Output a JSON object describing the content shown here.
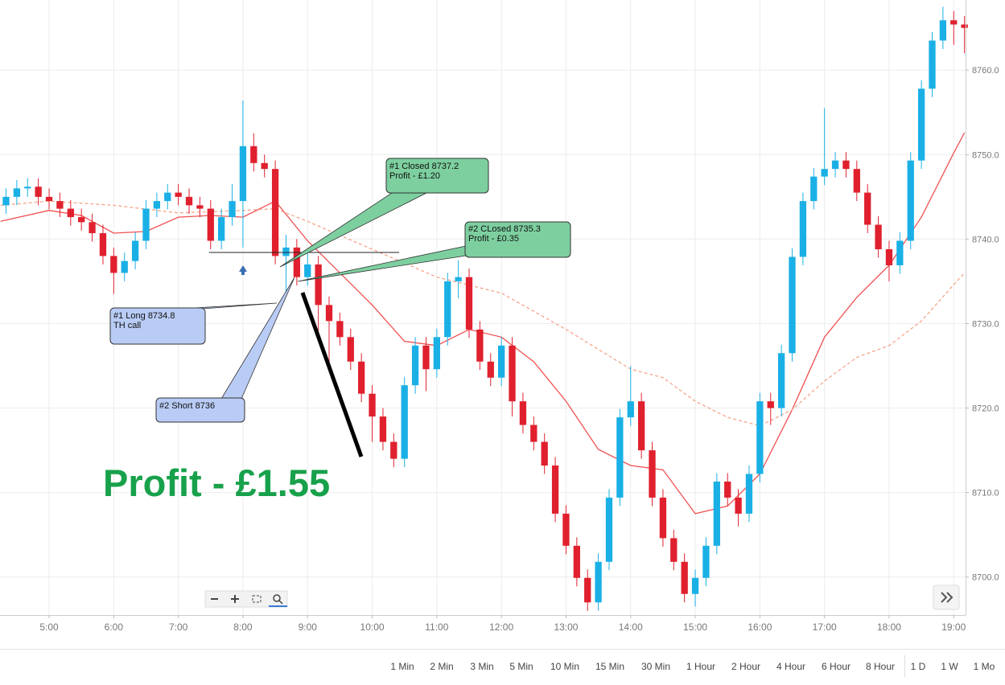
{
  "chart_data": {
    "type": "candlestick",
    "up_color": "#1ab0e6",
    "down_color": "#e0202e",
    "grid": true,
    "xlim": [
      254.4,
      1151
    ],
    "xticks": [
      {
        "value": 300,
        "label": "5:00"
      },
      {
        "value": 360,
        "label": "6:00"
      },
      {
        "value": 420,
        "label": "7:00"
      },
      {
        "value": 480,
        "label": "8:00"
      },
      {
        "value": 540,
        "label": "9:00"
      },
      {
        "value": 600,
        "label": "10:00"
      },
      {
        "value": 660,
        "label": "11:00"
      },
      {
        "value": 720,
        "label": "12:00"
      },
      {
        "value": 780,
        "label": "13:00"
      },
      {
        "value": 840,
        "label": "14:00"
      },
      {
        "value": 900,
        "label": "15:00"
      },
      {
        "value": 960,
        "label": "16:00"
      },
      {
        "value": 1020,
        "label": "17:00"
      },
      {
        "value": 1080,
        "label": "18:00"
      },
      {
        "value": 1140,
        "label": "19:00"
      }
    ],
    "ylim": [
      8695.5,
      8768.3
    ],
    "yticks": [
      {
        "value": 8700,
        "label": "8700.0"
      },
      {
        "value": 8710,
        "label": "8710.0"
      },
      {
        "value": 8720,
        "label": "8720.0"
      },
      {
        "value": 8730,
        "label": "8730.0"
      },
      {
        "value": 8740,
        "label": "8740.0"
      },
      {
        "value": 8750,
        "label": "8750.0"
      },
      {
        "value": 8760,
        "label": "8760.0"
      }
    ],
    "x": [
      260,
      270,
      280,
      290,
      300,
      310,
      320,
      330,
      340,
      350,
      360,
      370,
      380,
      390,
      400,
      410,
      420,
      430,
      440,
      450,
      460,
      470,
      480,
      490,
      500,
      510,
      520,
      530,
      540,
      550,
      560,
      570,
      580,
      590,
      600,
      610,
      620,
      630,
      640,
      650,
      660,
      670,
      680,
      690,
      700,
      710,
      720,
      730,
      740,
      750,
      760,
      770,
      780,
      790,
      800,
      810,
      820,
      830,
      840,
      850,
      860,
      870,
      880,
      890,
      900,
      910,
      920,
      930,
      940,
      950,
      960,
      970,
      980,
      990,
      1000,
      1010,
      1020,
      1030,
      1040,
      1050,
      1060,
      1070,
      1080,
      1090,
      1100,
      1110,
      1120,
      1130,
      1140,
      1150
    ],
    "open": [
      8744.0,
      8745.0,
      8746.0,
      8746.2,
      8745.0,
      8744.5,
      8743.6,
      8742.6,
      8742.0,
      8740.7,
      8738.0,
      8736.0,
      8737.4,
      8739.8,
      8743.6,
      8744.5,
      8745.5,
      8745.0,
      8744.0,
      8743.6,
      8739.8,
      8742.6,
      8744.5,
      8751.0,
      8749.0,
      8748.3,
      8738.0,
      8739.0,
      8735.5,
      8737.0,
      8732.2,
      8730.3,
      8728.4,
      8725.5,
      8721.7,
      8719.0,
      8716.0,
      8714.0,
      8722.7,
      8727.4,
      8724.6,
      8728.4,
      8735.0,
      8735.5,
      8729.3,
      8725.5,
      8723.6,
      8727.4,
      8720.8,
      8718.0,
      8716.0,
      8713.2,
      8707.5,
      8703.7,
      8699.9,
      8697.0,
      8701.8,
      8709.4,
      8718.9,
      8720.8,
      8715.0,
      8709.4,
      8704.6,
      8701.8,
      8698.0,
      8699.9,
      8703.7,
      8711.3,
      8709.4,
      8707.5,
      8712.2,
      8720.8,
      8720.0,
      8726.5,
      8737.9,
      8744.5,
      8747.4,
      8748.3,
      8749.3,
      8748.3,
      8745.5,
      8741.7,
      8738.8,
      8736.9,
      8739.8,
      8749.3,
      8757.8,
      8763.5,
      8765.9,
      8765.4
    ],
    "high": [
      8746.0,
      8747.0,
      8747.2,
      8747.2,
      8746.0,
      8745.5,
      8744.6,
      8743.6,
      8743.0,
      8741.7,
      8739.0,
      8738.4,
      8740.8,
      8744.6,
      8745.5,
      8746.5,
      8746.5,
      8746.0,
      8745.0,
      8744.6,
      8743.6,
      8746.5,
      8756.4,
      8752.5,
      8750.0,
      8749.3,
      8740.5,
      8740.0,
      8738.5,
      8738.0,
      8733.2,
      8731.3,
      8729.4,
      8726.5,
      8722.7,
      8720.0,
      8717.0,
      8723.7,
      8728.4,
      8728.4,
      8729.4,
      8736.0,
      8737.5,
      8736.5,
      8730.3,
      8726.5,
      8728.4,
      8728.4,
      8721.8,
      8719.0,
      8717.0,
      8714.2,
      8708.5,
      8704.7,
      8700.9,
      8702.8,
      8710.4,
      8719.9,
      8725.0,
      8721.8,
      8716.0,
      8710.4,
      8705.6,
      8702.8,
      8700.9,
      8704.7,
      8712.3,
      8712.3,
      8710.4,
      8713.2,
      8721.8,
      8721.8,
      8727.5,
      8738.9,
      8745.5,
      8748.4,
      8755.5,
      8750.3,
      8750.3,
      8749.3,
      8746.5,
      8742.7,
      8739.8,
      8740.8,
      8750.3,
      8758.8,
      8764.5,
      8767.5,
      8767.0,
      8766.4
    ],
    "low": [
      8743.0,
      8744.0,
      8745.0,
      8744.0,
      8743.5,
      8742.6,
      8741.6,
      8741.0,
      8739.7,
      8737.0,
      8733.5,
      8735.0,
      8736.4,
      8738.8,
      8742.6,
      8743.5,
      8744.0,
      8743.0,
      8742.6,
      8738.8,
      8738.8,
      8741.6,
      8739.0,
      8748.0,
      8747.3,
      8737.0,
      8733.5,
      8734.5,
      8734.5,
      8728.5,
      8724.5,
      8727.4,
      8724.5,
      8720.7,
      8716.0,
      8715.0,
      8713.0,
      8713.0,
      8721.7,
      8722.0,
      8723.6,
      8727.4,
      8733.0,
      8728.3,
      8724.5,
      8722.6,
      8722.6,
      8719.0,
      8717.0,
      8715.0,
      8712.2,
      8706.5,
      8702.7,
      8698.9,
      8696.0,
      8696.0,
      8700.8,
      8708.4,
      8717.9,
      8714.0,
      8708.4,
      8703.6,
      8700.8,
      8697.0,
      8696.5,
      8698.9,
      8702.7,
      8708.4,
      8706.0,
      8706.5,
      8711.2,
      8718.0,
      8719.0,
      8725.5,
      8736.9,
      8743.5,
      8746.4,
      8747.3,
      8747.3,
      8744.5,
      8740.7,
      8737.8,
      8735.0,
      8735.9,
      8738.8,
      8748.3,
      8756.8,
      8762.5,
      8763.0,
      8762.0
    ],
    "close": [
      8745.0,
      8746.0,
      8746.2,
      8745.0,
      8744.5,
      8743.6,
      8742.6,
      8742.0,
      8740.7,
      8738.0,
      8736.0,
      8737.4,
      8739.8,
      8743.6,
      8744.5,
      8745.5,
      8745.0,
      8744.0,
      8743.6,
      8739.8,
      8742.6,
      8744.5,
      8751.0,
      8749.0,
      8748.3,
      8738.0,
      8739.0,
      8735.5,
      8737.0,
      8732.2,
      8730.3,
      8728.4,
      8725.5,
      8721.7,
      8719.0,
      8716.0,
      8714.0,
      8722.7,
      8727.4,
      8724.6,
      8728.4,
      8735.0,
      8735.5,
      8729.3,
      8725.5,
      8723.6,
      8727.4,
      8720.8,
      8718.0,
      8716.0,
      8713.2,
      8707.5,
      8703.7,
      8699.9,
      8697.0,
      8701.8,
      8709.4,
      8718.9,
      8720.8,
      8715.0,
      8709.4,
      8704.6,
      8701.8,
      8698.0,
      8699.9,
      8703.7,
      8711.3,
      8709.4,
      8707.5,
      8712.2,
      8720.8,
      8720.0,
      8726.5,
      8737.9,
      8744.5,
      8747.4,
      8748.3,
      8749.3,
      8748.3,
      8745.5,
      8741.7,
      8738.8,
      8736.9,
      8739.8,
      8749.3,
      8757.8,
      8763.5,
      8765.9,
      8765.4,
      8765.0
    ],
    "moving_averages": [
      {
        "color": "#f05050",
        "dashed": false,
        "x": [
          255,
          300,
          330,
          360,
          390,
          420,
          450,
          480,
          510,
          540,
          570,
          600,
          630,
          660,
          690,
          720,
          750,
          780,
          810,
          840,
          870,
          900,
          930,
          960,
          990,
          1020,
          1050,
          1080,
          1110,
          1140,
          1150
        ],
        "values": [
          8742.1,
          8743.4,
          8742.8,
          8740.7,
          8740.9,
          8742.6,
          8742.8,
          8742.6,
          8744.5,
          8739.8,
          8736,
          8732.2,
          8727.9,
          8727.4,
          8729.3,
          8728.4,
          8725.5,
          8720.8,
          8715.1,
          8713.2,
          8712.7,
          8707.5,
          8708.4,
          8712.2,
          8719.8,
          8728.4,
          8733.1,
          8736.9,
          8742.6,
          8750.2,
          8752.6
        ]
      },
      {
        "color": "#f5a58a",
        "dashed": true,
        "x": [
          255,
          300,
          360,
          420,
          480,
          510,
          540,
          600,
          660,
          720,
          780,
          840,
          870,
          900,
          930,
          960,
          990,
          1020,
          1050,
          1080,
          1110,
          1140,
          1150
        ],
        "values": [
          8744,
          8744.5,
          8744,
          8743.1,
          8743.4,
          8743.6,
          8742.1,
          8738.8,
          8735.5,
          8733.6,
          8729.3,
          8724.6,
          8723.6,
          8720.8,
          8718.9,
          8717.9,
          8719.8,
          8723.2,
          8726,
          8727.4,
          8730.3,
          8734.6,
          8736
        ]
      }
    ],
    "annotations": [
      {
        "lines": [
          "#1 Closed 8737.2",
          "Profit - £1.20"
        ]
      },
      {
        "lines": [
          "#2 CLosed 8735.3",
          "Profit - £0.35"
        ]
      },
      {
        "lines": [
          "#1 Long 8734.8",
          "TH call"
        ]
      },
      {
        "lines": [
          "#2 Short 8736"
        ]
      }
    ],
    "result_label": "Profit - £1.55",
    "timeframes": [
      "1 Min",
      "2 Min",
      "3 Min",
      "5 Min",
      "10 Min",
      "15 Min",
      "30 Min",
      "1 Hour",
      "2 Hour",
      "4 Hour",
      "6 Hour",
      "8 Hour",
      "1 D",
      "1 W",
      "1 Mo"
    ]
  }
}
